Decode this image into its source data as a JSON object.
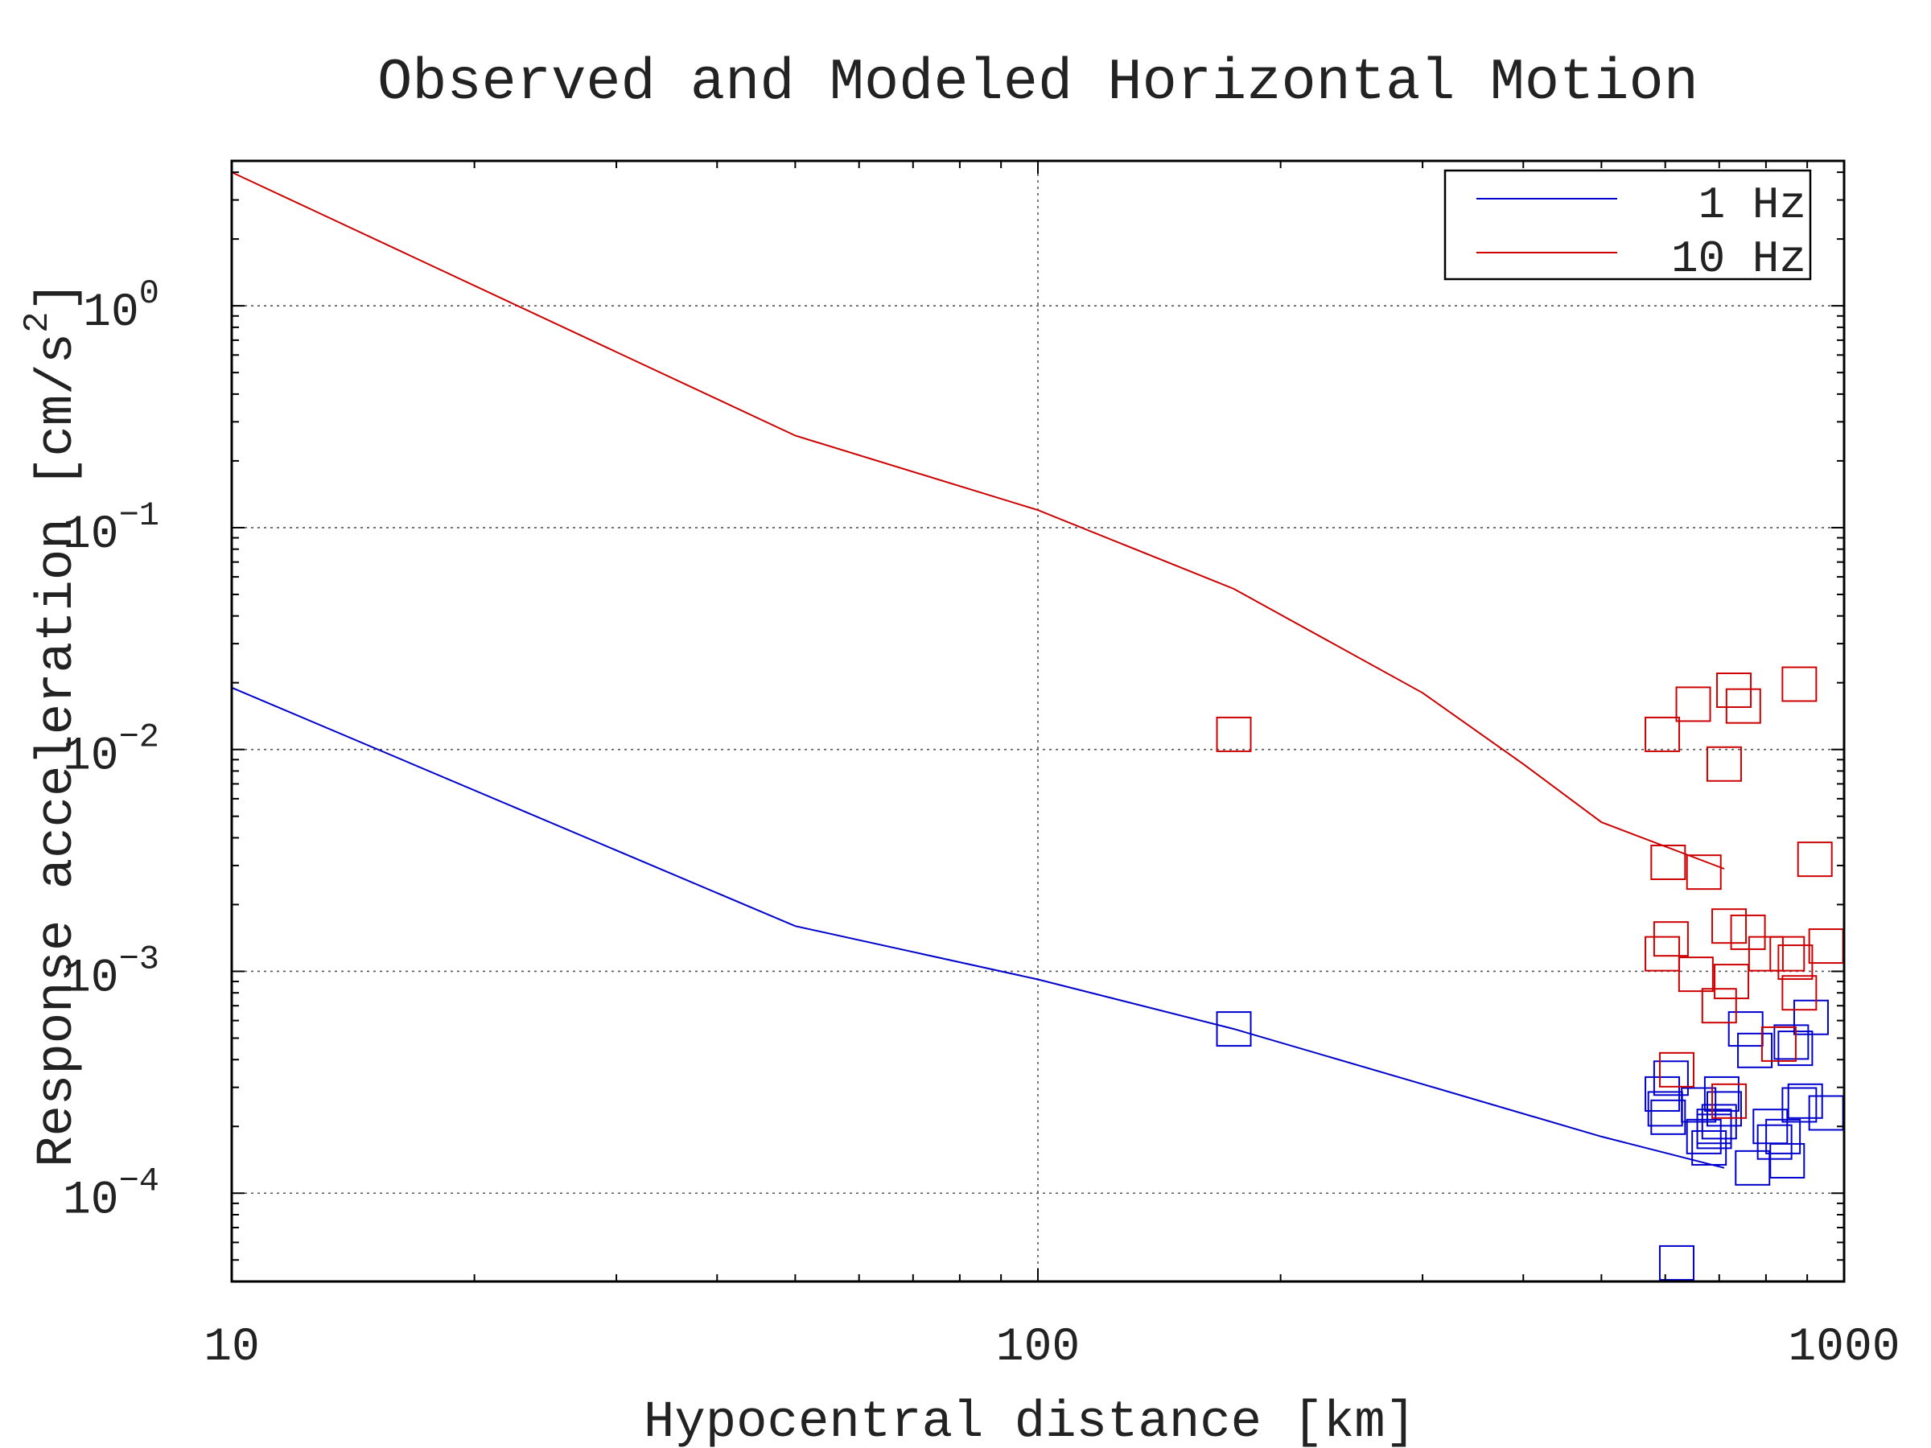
{
  "chart_data": {
    "type": "scatter",
    "title": "Observed and Modeled Horizontal Motion",
    "xlabel": "Hypocentral distance [km]",
    "ylabel_main": "Response acceleration [cm/s",
    "ylabel_sup": "2",
    "ylabel_close": "]",
    "x_scale": "log",
    "y_scale": "log",
    "xlim": [
      10,
      1000
    ],
    "ylim": [
      4e-05,
      4.5
    ],
    "x_ticks": [
      {
        "value": 10,
        "label": "10"
      },
      {
        "value": 100,
        "label": "100"
      },
      {
        "value": 1000,
        "label": "1000"
      }
    ],
    "y_ticks": [
      {
        "value": 1,
        "base": "10",
        "exp": "0"
      },
      {
        "value": 0.1,
        "base": "10",
        "exp": "−1"
      },
      {
        "value": 0.01,
        "base": "10",
        "exp": "−2"
      },
      {
        "value": 0.001,
        "base": "10",
        "exp": "−3"
      },
      {
        "value": 0.0001,
        "base": "10",
        "exp": "−4"
      }
    ],
    "grid": true,
    "legend_position": "top-right",
    "series": [
      {
        "name": "1 Hz",
        "color": "#0000cc",
        "model_line": [
          [
            10,
            0.019
          ],
          [
            50,
            0.0016
          ],
          [
            100,
            0.00092
          ],
          [
            175,
            0.00055
          ],
          [
            300,
            0.00031
          ],
          [
            500,
            0.00018
          ],
          [
            710,
            0.00013
          ]
        ],
        "observations": [
          [
            175,
            0.00055
          ],
          [
            620,
            4.85e-05
          ],
          [
            595,
            0.00028
          ],
          [
            610,
            0.00033
          ],
          [
            600,
            0.00024
          ],
          [
            605,
            0.00022
          ],
          [
            660,
            0.00025
          ],
          [
            670,
            0.00018
          ],
          [
            680,
            0.00016
          ],
          [
            690,
            0.00019
          ],
          [
            700,
            0.00021
          ],
          [
            705,
            0.00028
          ],
          [
            710,
            0.00024
          ],
          [
            690,
            0.0002
          ],
          [
            770,
            0.00013
          ],
          [
            810,
            0.0002
          ],
          [
            820,
            0.00017
          ],
          [
            840,
            0.00018
          ],
          [
            850,
            0.00014
          ],
          [
            860,
            0.00048
          ],
          [
            870,
            0.00045
          ],
          [
            880,
            0.00025
          ],
          [
            895,
            0.00026
          ],
          [
            910,
            0.00062
          ],
          [
            775,
            0.00044
          ],
          [
            755,
            0.00055
          ],
          [
            950,
            0.00023
          ]
        ]
      },
      {
        "name": "10 Hz",
        "color": "#cc0000",
        "model_line": [
          [
            10,
            4.0
          ],
          [
            50,
            0.26
          ],
          [
            100,
            0.12
          ],
          [
            175,
            0.053
          ],
          [
            300,
            0.018
          ],
          [
            400,
            0.0086
          ],
          [
            500,
            0.0047
          ],
          [
            710,
            0.0029
          ]
        ],
        "observations": [
          [
            175,
            0.0117
          ],
          [
            595,
            0.0117
          ],
          [
            650,
            0.016
          ],
          [
            730,
            0.0185
          ],
          [
            750,
            0.0157
          ],
          [
            880,
            0.0197
          ],
          [
            710,
            0.0086
          ],
          [
            605,
            0.0031
          ],
          [
            670,
            0.0028
          ],
          [
            920,
            0.0032
          ],
          [
            720,
            0.0016
          ],
          [
            760,
            0.0015
          ],
          [
            610,
            0.0014
          ],
          [
            595,
            0.0012
          ],
          [
            800,
            0.0012
          ],
          [
            850,
            0.0012
          ],
          [
            870,
            0.0011
          ],
          [
            950,
            0.0013
          ],
          [
            655,
            0.00097
          ],
          [
            725,
            0.0009
          ],
          [
            880,
            0.0008
          ],
          [
            700,
            0.0007
          ],
          [
            620,
            0.00036
          ],
          [
            720,
            0.00026
          ],
          [
            830,
            0.00047
          ]
        ]
      }
    ]
  }
}
